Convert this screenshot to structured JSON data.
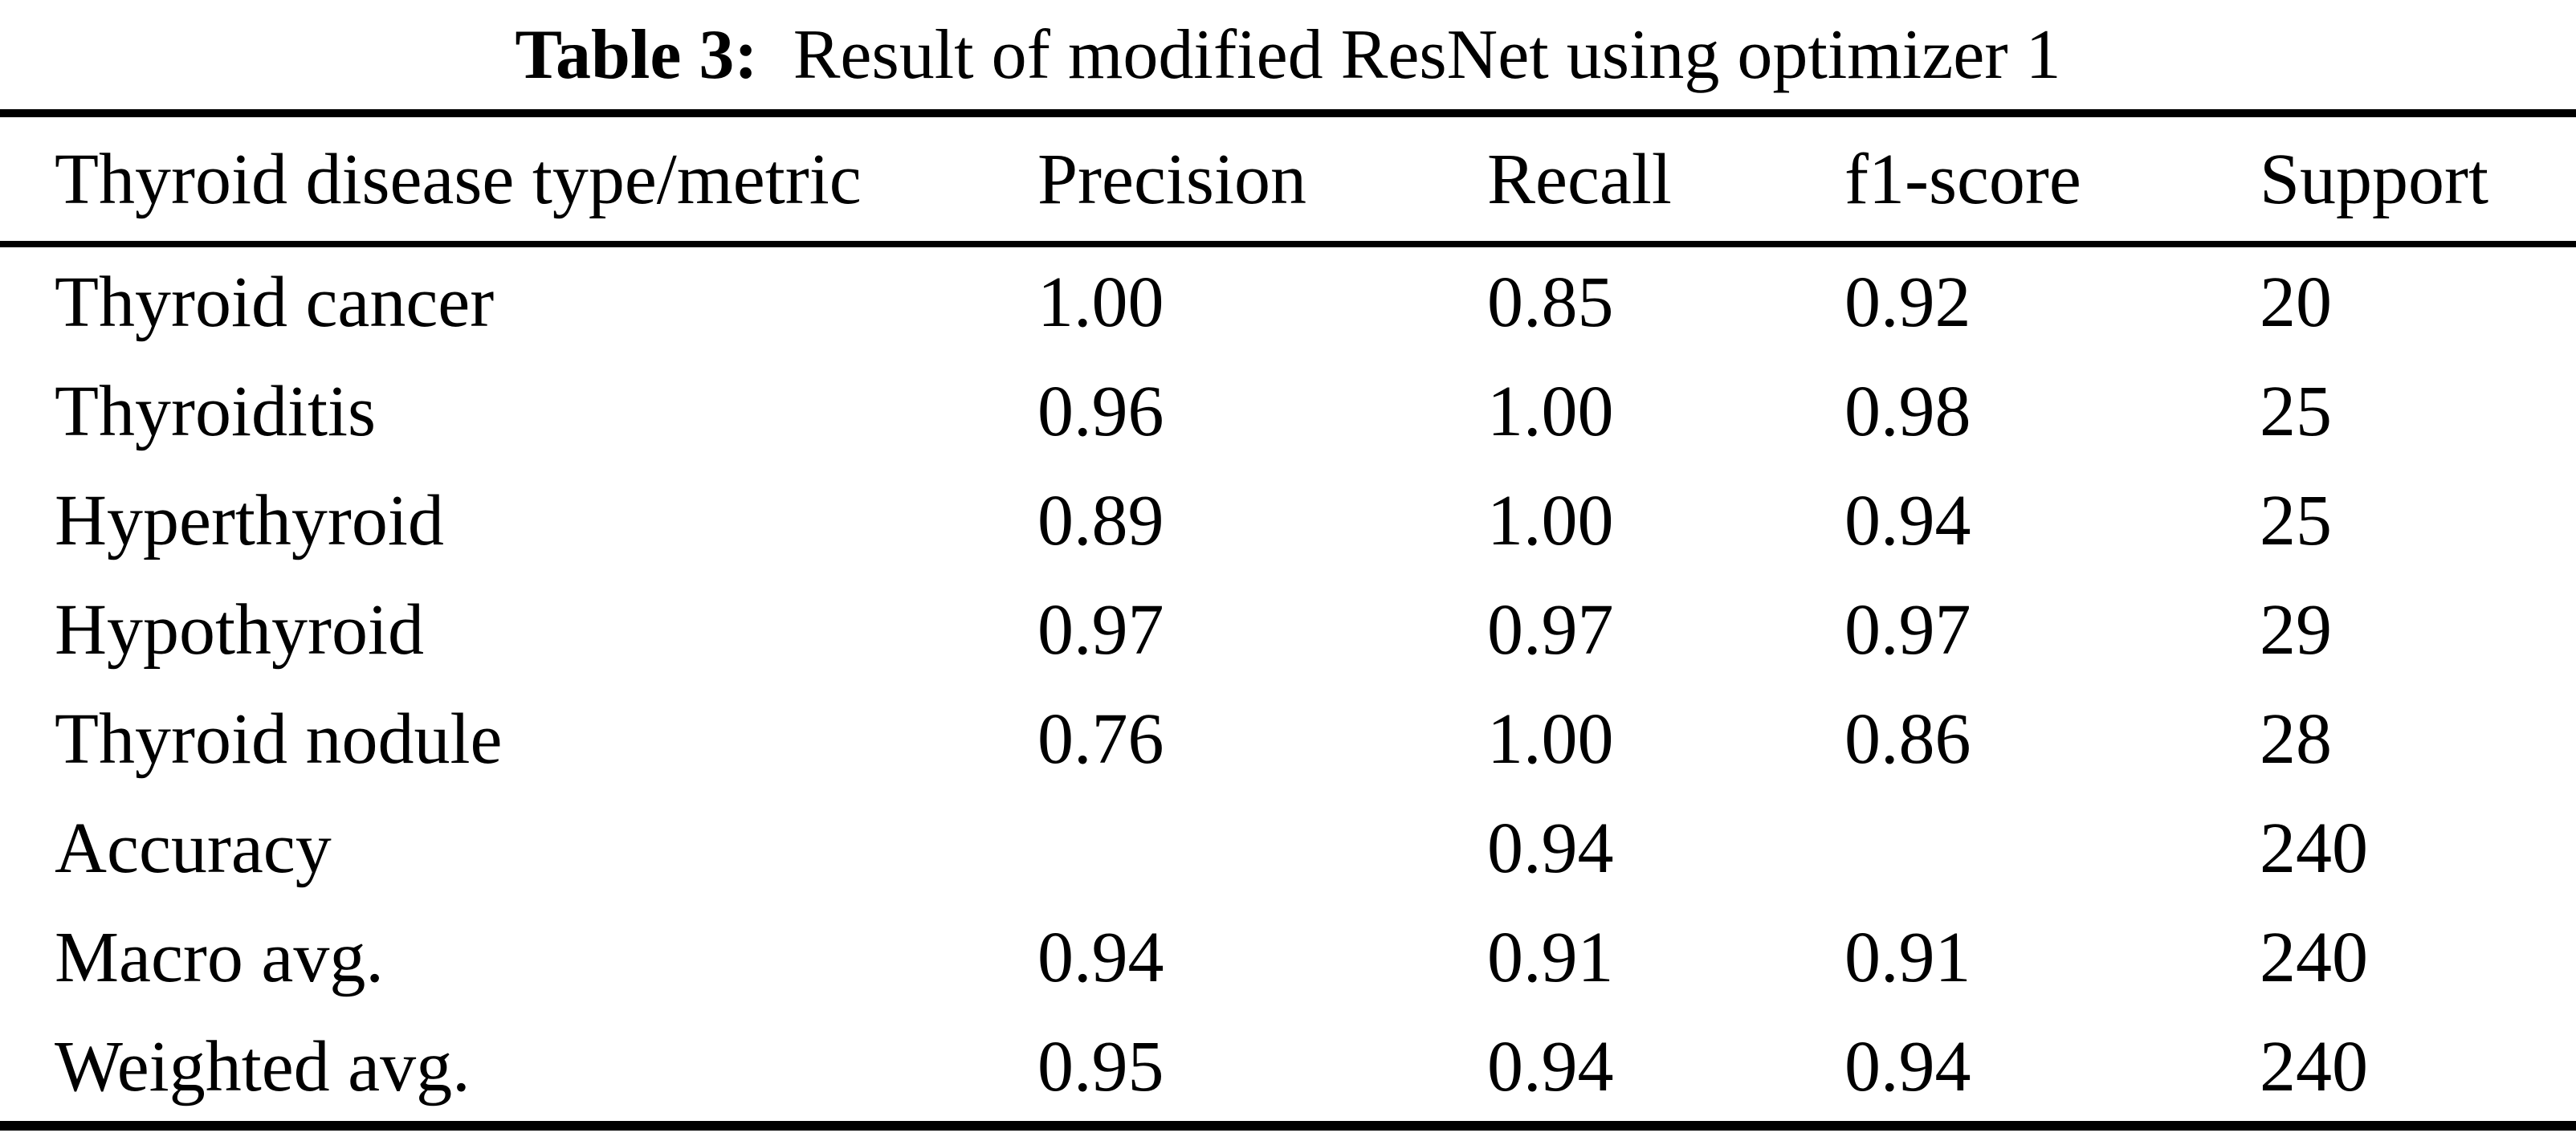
{
  "caption": {
    "label": "Table 3:",
    "text": "Result of modified ResNet using optimizer 1"
  },
  "table": {
    "headers": [
      "Thyroid disease type/metric",
      "Precision",
      "Recall",
      "f1-score",
      "Support"
    ],
    "rows": [
      {
        "cells": [
          "Thyroid cancer",
          "1.00",
          "0.85",
          "0.92",
          "20"
        ]
      },
      {
        "cells": [
          "Thyroiditis",
          "0.96",
          "1.00",
          "0.98",
          "25"
        ]
      },
      {
        "cells": [
          "Hyperthyroid",
          "0.89",
          "1.00",
          "0.94",
          "25"
        ]
      },
      {
        "cells": [
          "Hypothyroid",
          "0.97",
          "0.97",
          "0.97",
          "29"
        ]
      },
      {
        "cells": [
          "Thyroid nodule",
          "0.76",
          "1.00",
          "0.86",
          "28"
        ]
      },
      {
        "cells": [
          "Accuracy",
          "",
          "0.94",
          "",
          "240"
        ]
      },
      {
        "cells": [
          "Macro avg.",
          "0.94",
          "0.91",
          "0.91",
          "240"
        ]
      },
      {
        "cells": [
          "Weighted avg.",
          "0.95",
          "0.94",
          "0.94",
          "240"
        ]
      }
    ]
  },
  "colors": {
    "text": "#000000",
    "background": "#ffffff",
    "rule": "#000000"
  },
  "chart_data": {
    "type": "table",
    "title": "Table 3: Result of modified ResNet using optimizer 1",
    "columns": [
      "Thyroid disease type/metric",
      "Precision",
      "Recall",
      "f1-score",
      "Support"
    ],
    "rows": [
      [
        "Thyroid cancer",
        1.0,
        0.85,
        0.92,
        20
      ],
      [
        "Thyroiditis",
        0.96,
        1.0,
        0.98,
        25
      ],
      [
        "Hyperthyroid",
        0.89,
        1.0,
        0.94,
        25
      ],
      [
        "Hypothyroid",
        0.97,
        0.97,
        0.97,
        29
      ],
      [
        "Thyroid nodule",
        0.76,
        1.0,
        0.86,
        28
      ],
      [
        "Accuracy",
        null,
        0.94,
        null,
        240
      ],
      [
        "Macro avg.",
        0.94,
        0.91,
        0.91,
        240
      ],
      [
        "Weighted avg.",
        0.95,
        0.94,
        0.94,
        240
      ]
    ]
  }
}
